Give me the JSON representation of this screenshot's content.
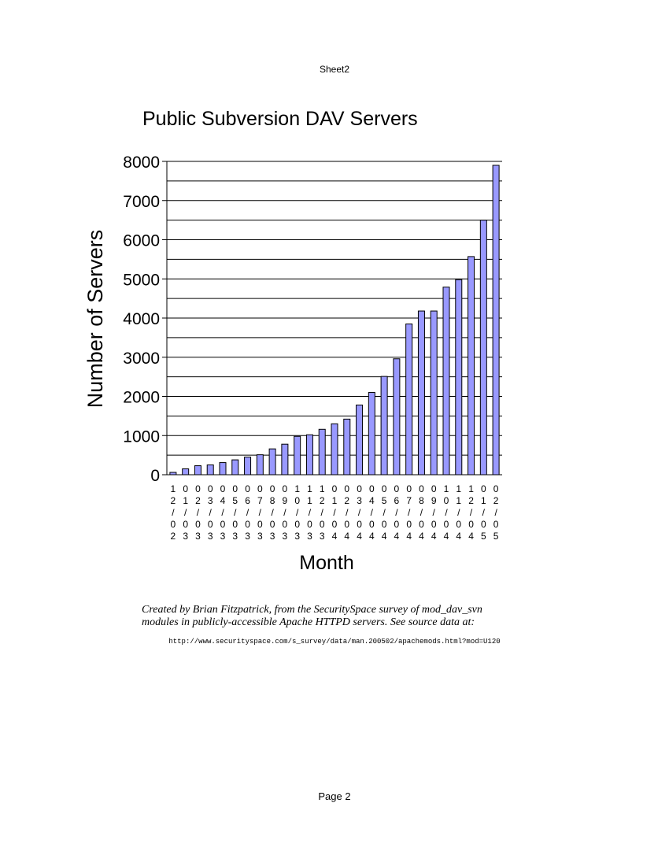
{
  "header": {
    "sheet_name": "Sheet2"
  },
  "footer": {
    "page_label": "Page 2"
  },
  "caption": {
    "line1": "Created by Brian Fitzpatrick, from the SecuritySpace survey of mod_dav_svn",
    "line2": "modules in publicly-accessible Apache HTTPD servers.  See source data at:",
    "url": "http://www.securityspace.com/s_survey/data/man.200502/apachemods.html?mod=U120"
  },
  "colors": {
    "bar_fill": "#9999ff",
    "bar_stroke": "#000000",
    "grid": "#000000"
  },
  "chart_data": {
    "type": "bar",
    "title": "Public Subversion DAV Servers",
    "xlabel": "Month",
    "ylabel": "Number of Servers",
    "ylim": [
      0,
      8000
    ],
    "yticks": [
      "0",
      "1000",
      "2000",
      "3000",
      "4000",
      "5000",
      "6000",
      "7000",
      "8000"
    ],
    "grid": true,
    "legend": "none",
    "categories": [
      "12/02",
      "01/03",
      "02/03",
      "03/03",
      "04/03",
      "05/03",
      "06/03",
      "07/03",
      "08/03",
      "09/03",
      "10/03",
      "11/03",
      "12/03",
      "01/04",
      "02/04",
      "03/04",
      "04/04",
      "05/04",
      "06/04",
      "07/04",
      "08/04",
      "09/04",
      "10/04",
      "11/04",
      "12/04",
      "01/05",
      "02/05"
    ],
    "values": [
      60,
      150,
      230,
      250,
      310,
      380,
      450,
      510,
      660,
      780,
      980,
      1020,
      1160,
      1300,
      1420,
      1780,
      2100,
      2510,
      2960,
      3850,
      4180,
      4180,
      4790,
      4980,
      5570,
      6500,
      7900
    ]
  }
}
